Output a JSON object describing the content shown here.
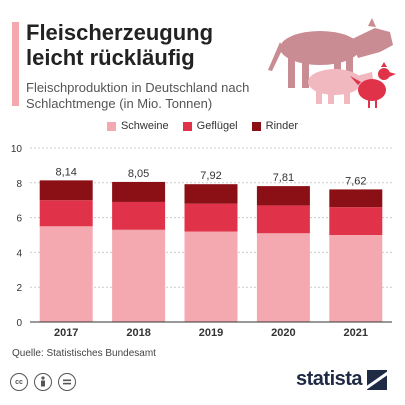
{
  "header": {
    "title": "Fleischerzeugung leicht rückläufig",
    "subtitle": "Fleischproduktion in Deutschland nach Schlachtmenge (in Mio. Tonnen)"
  },
  "illustration_icon": "farm-animals-icon",
  "footer": {
    "source": "Quelle: Statistisches Bundesamt",
    "icons": [
      "cc-icon",
      "by-icon",
      "nd-icon"
    ],
    "brand": "statista"
  },
  "colors": {
    "schweine": "#f4a9b0",
    "gefluegel": "#e0334a",
    "rinder": "#8b1015",
    "grid": "#cccccc",
    "axis": "#333333"
  },
  "chart_data": {
    "type": "bar",
    "stacked": true,
    "categories": [
      "2017",
      "2018",
      "2019",
      "2020",
      "2021"
    ],
    "series": [
      {
        "name": "Schweine",
        "values": [
          5.5,
          5.3,
          5.2,
          5.1,
          5.0
        ]
      },
      {
        "name": "Geflügel",
        "values": [
          1.5,
          1.6,
          1.6,
          1.6,
          1.6
        ]
      },
      {
        "name": "Rinder",
        "values": [
          1.14,
          1.15,
          1.12,
          1.11,
          1.02
        ]
      }
    ],
    "totals": [
      "8,14",
      "8,05",
      "7,92",
      "7,81",
      "7,62"
    ],
    "ylim": [
      0,
      10
    ],
    "yticks": [
      0,
      2,
      4,
      6,
      8,
      10
    ],
    "grid": true,
    "legend": "top-center"
  }
}
